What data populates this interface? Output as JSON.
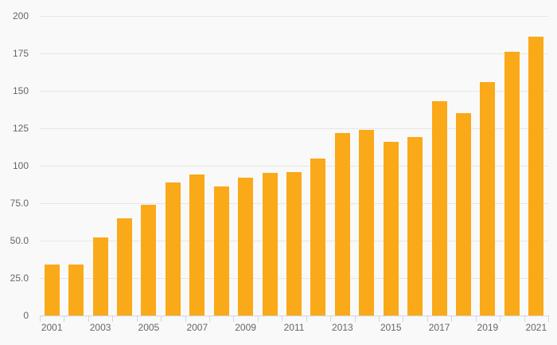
{
  "chart_data": {
    "type": "bar",
    "title": "",
    "categories": [
      "2001",
      "2002",
      "2003",
      "2004",
      "2005",
      "2006",
      "2007",
      "2008",
      "2009",
      "2010",
      "2011",
      "2012",
      "2013",
      "2014",
      "2015",
      "2016",
      "2017",
      "2018",
      "2019",
      "2020",
      "2021"
    ],
    "values": [
      34,
      34,
      52,
      65,
      74,
      89,
      94,
      86,
      92,
      95,
      96,
      105,
      122,
      124,
      116,
      119,
      143,
      135,
      156,
      176,
      186
    ],
    "xlabel": "",
    "ylabel": "",
    "ylim": [
      0,
      200
    ],
    "ytick_values": [
      0,
      25,
      50,
      75,
      100,
      125,
      150,
      175,
      200
    ],
    "ytick_labels": [
      "0",
      "25.0",
      "50.0",
      "75.0",
      "100",
      "125",
      "150",
      "175",
      "200"
    ],
    "xtick_labels_visible": [
      "2001",
      "2003",
      "2005",
      "2007",
      "2009",
      "2011",
      "2013",
      "2015",
      "2017",
      "2019",
      "2021"
    ],
    "grid": true,
    "legend": "none",
    "colors": {
      "bar": "#faa919",
      "background": "#f9f9f9",
      "gridline": "#e6e6e6",
      "axis_line": "#ccd6eb",
      "tick": "#ccd6eb",
      "label_text": "#666666"
    }
  }
}
